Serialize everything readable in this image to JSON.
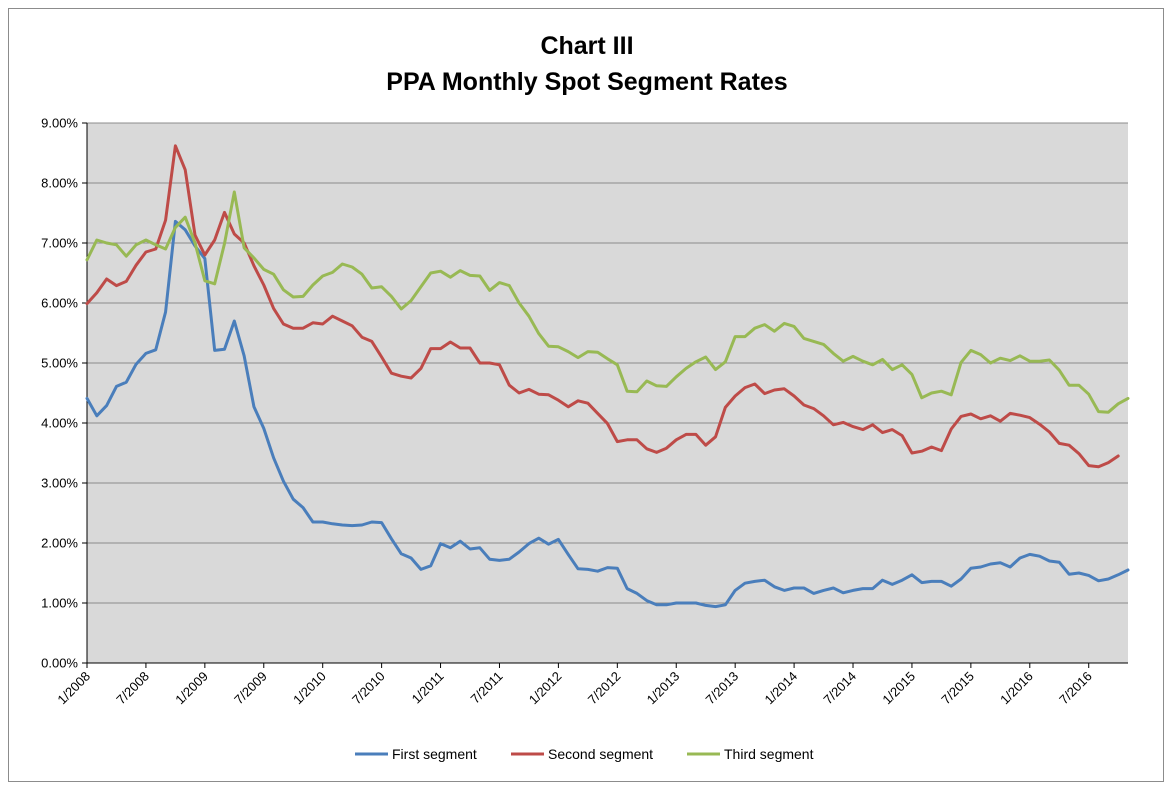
{
  "chart_data": {
    "type": "line",
    "title": "Chart III",
    "subtitle": "PPA Monthly Spot Segment Rates",
    "xlabel": "",
    "ylabel": "",
    "ylim": [
      0,
      0.09
    ],
    "y_ticks": [
      "0.00%",
      "1.00%",
      "2.00%",
      "3.00%",
      "4.00%",
      "5.00%",
      "6.00%",
      "7.00%",
      "8.00%",
      "9.00%"
    ],
    "x_ticks": [
      "1/2008",
      "7/2008",
      "1/2009",
      "7/2009",
      "1/2010",
      "7/2010",
      "1/2011",
      "7/2011",
      "1/2012",
      "7/2012",
      "1/2013",
      "7/2013",
      "1/2014",
      "7/2014",
      "1/2015",
      "7/2015",
      "1/2016",
      "7/2016"
    ],
    "x_start": "1/2008",
    "x_end": "10/2016",
    "grid": true,
    "legend_position": "bottom",
    "colors": {
      "plot_background": "#d9d9d9",
      "grid": "#8c8c8c"
    },
    "series": [
      {
        "name": "First segment",
        "color": "#4a7ebb",
        "values": [
          0.0441,
          0.0412,
          0.0429,
          0.0461,
          0.0468,
          0.0498,
          0.0516,
          0.0522,
          0.0585,
          0.0736,
          0.0722,
          0.0695,
          0.0674,
          0.0521,
          0.0523,
          0.057,
          0.0512,
          0.0427,
          0.0391,
          0.0342,
          0.0303,
          0.0273,
          0.0259,
          0.0235,
          0.0235,
          0.0232,
          0.023,
          0.0229,
          0.023,
          0.0235,
          0.0234,
          0.0207,
          0.0182,
          0.0175,
          0.0156,
          0.0162,
          0.0199,
          0.0192,
          0.0203,
          0.019,
          0.0192,
          0.0173,
          0.0171,
          0.0173,
          0.0185,
          0.0199,
          0.0208,
          0.0198,
          0.0206,
          0.0181,
          0.0157,
          0.0156,
          0.0153,
          0.0159,
          0.0158,
          0.0124,
          0.0116,
          0.0104,
          0.0097,
          0.0097,
          0.01,
          0.01,
          0.01,
          0.0096,
          0.0094,
          0.0097,
          0.0121,
          0.0133,
          0.0136,
          0.0138,
          0.0127,
          0.0121,
          0.0125,
          0.0125,
          0.0116,
          0.0121,
          0.0125,
          0.0117,
          0.0121,
          0.0124,
          0.0124,
          0.0138,
          0.0131,
          0.0138,
          0.0147,
          0.0134,
          0.0136,
          0.0136,
          0.0128,
          0.014,
          0.0158,
          0.016,
          0.0165,
          0.0167,
          0.016,
          0.0175,
          0.0181,
          0.0178,
          0.017,
          0.0168,
          0.0148,
          0.015,
          0.0146,
          0.0137,
          0.014,
          0.0147,
          0.0155
        ]
      },
      {
        "name": "Second segment",
        "color": "#be4b48",
        "values": [
          0.0599,
          0.0617,
          0.064,
          0.0629,
          0.0636,
          0.0663,
          0.0685,
          0.069,
          0.0738,
          0.0862,
          0.0822,
          0.0713,
          0.068,
          0.0705,
          0.0751,
          0.0715,
          0.07,
          0.0662,
          0.063,
          0.0591,
          0.0565,
          0.0558,
          0.0558,
          0.0567,
          0.0565,
          0.0578,
          0.057,
          0.0562,
          0.0543,
          0.0536,
          0.051,
          0.0483,
          0.0478,
          0.0475,
          0.0491,
          0.0524,
          0.0524,
          0.0535,
          0.0525,
          0.0525,
          0.05,
          0.05,
          0.0497,
          0.0463,
          0.045,
          0.0456,
          0.0448,
          0.0447,
          0.0438,
          0.0427,
          0.0437,
          0.0433,
          0.0416,
          0.0399,
          0.0369,
          0.0372,
          0.0372,
          0.0357,
          0.0351,
          0.0358,
          0.0372,
          0.0381,
          0.0381,
          0.0363,
          0.0377,
          0.0426,
          0.0445,
          0.0459,
          0.0465,
          0.0449,
          0.0455,
          0.0457,
          0.0445,
          0.043,
          0.0424,
          0.0412,
          0.0397,
          0.0401,
          0.0394,
          0.0389,
          0.0397,
          0.0384,
          0.0389,
          0.0379,
          0.035,
          0.0353,
          0.036,
          0.0354,
          0.039,
          0.0411,
          0.0415,
          0.0407,
          0.0412,
          0.0403,
          0.0416,
          0.0413,
          0.0409,
          0.0398,
          0.0385,
          0.0366,
          0.0363,
          0.0349,
          0.0329,
          0.0327,
          0.0334,
          0.0345
        ]
      },
      {
        "name": "Third segment",
        "color": "#98b954",
        "values": [
          0.0672,
          0.0705,
          0.07,
          0.0697,
          0.0678,
          0.0697,
          0.0705,
          0.0697,
          0.069,
          0.0726,
          0.0743,
          0.07,
          0.0637,
          0.0632,
          0.0699,
          0.0785,
          0.0692,
          0.0675,
          0.0656,
          0.0648,
          0.0622,
          0.061,
          0.0611,
          0.063,
          0.0645,
          0.0651,
          0.0665,
          0.066,
          0.0648,
          0.0625,
          0.0627,
          0.0611,
          0.059,
          0.0604,
          0.0627,
          0.065,
          0.0653,
          0.0643,
          0.0654,
          0.0646,
          0.0645,
          0.0621,
          0.0634,
          0.0629,
          0.06,
          0.0578,
          0.0549,
          0.0528,
          0.0527,
          0.0519,
          0.0509,
          0.0519,
          0.0518,
          0.0507,
          0.0497,
          0.0453,
          0.0452,
          0.047,
          0.0462,
          0.0461,
          0.0477,
          0.0491,
          0.0502,
          0.051,
          0.0489,
          0.0502,
          0.0544,
          0.0544,
          0.0558,
          0.0564,
          0.0553,
          0.0566,
          0.0561,
          0.0541,
          0.0536,
          0.0531,
          0.0516,
          0.0503,
          0.0511,
          0.0503,
          0.0497,
          0.0506,
          0.0489,
          0.0497,
          0.0481,
          0.0442,
          0.045,
          0.0453,
          0.0447,
          0.0501,
          0.0521,
          0.0514,
          0.05,
          0.0508,
          0.0504,
          0.0512,
          0.0503,
          0.0503,
          0.0505,
          0.0488,
          0.0463,
          0.0463,
          0.0448,
          0.0419,
          0.0418,
          0.0432,
          0.0441
        ]
      }
    ]
  }
}
